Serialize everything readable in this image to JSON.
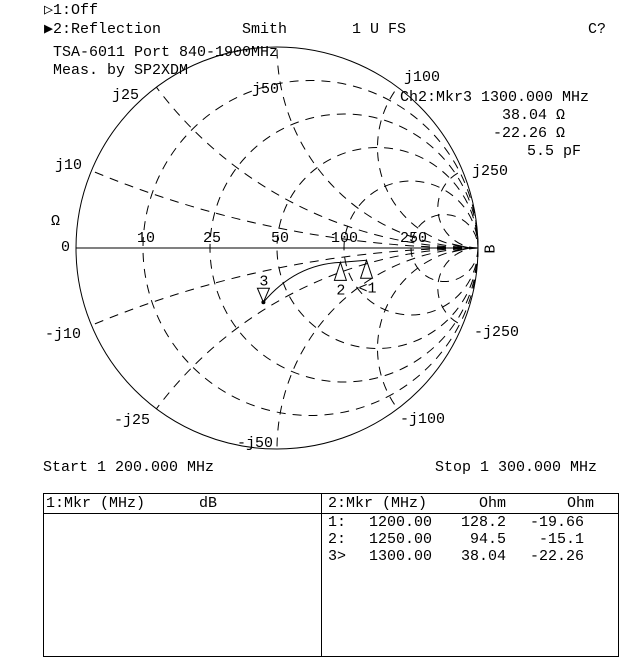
{
  "header": {
    "ch1": "1:Off",
    "ch2": "2:Reflection",
    "format": "Smith",
    "scale": "1 U FS",
    "cal_status": "C?",
    "title_line1": "TSA-6011 Port 840-1900MHz",
    "title_line2": "Meas. by SP2XDM"
  },
  "marker_readout": {
    "title": "Ch2:Mkr3 1300.000 MHz",
    "resistance": "38.04 Ω",
    "reactance": "-22.26 Ω",
    "equivalent": "5.5 pF"
  },
  "chart_data": {
    "type": "smith",
    "z0_ohm": 50,
    "resistance_labels": [
      "0",
      "10",
      "25",
      "50",
      "100",
      "250"
    ],
    "resistance_values": [
      10,
      25,
      50,
      100,
      250
    ],
    "reactance_labels_pos": [
      "j10",
      "j25",
      "j50",
      "j100",
      "j250"
    ],
    "reactance_labels_neg": [
      "-j10",
      "-j25",
      "-j50",
      "-j100",
      "-j250"
    ],
    "reactance_values": [
      10,
      25,
      50,
      100,
      250
    ],
    "unit_label": "Ω",
    "right_label": "B",
    "markers": [
      {
        "label": "1",
        "freq_mhz": 1200.0,
        "r_ohm": 128.2,
        "x_ohm": -19.66
      },
      {
        "label": "2",
        "freq_mhz": 1250.0,
        "r_ohm": 94.5,
        "x_ohm": -15.1
      },
      {
        "label": "3",
        "freq_mhz": 1300.0,
        "r_ohm": 38.04,
        "x_ohm": -22.26
      }
    ]
  },
  "footer": {
    "start": "Start 1 200.000 MHz",
    "stop": "Stop 1 300.000 MHz"
  },
  "table": {
    "left_header": "1:Mkr (MHz)      dB",
    "right_header": {
      "col1": "2:Mkr (MHz)",
      "col2": "Ohm",
      "col3": "Ohm"
    },
    "rows": [
      {
        "id": "1:",
        "freq": "1200.00",
        "r": "128.2",
        "x": "-19.66"
      },
      {
        "id": "2:",
        "freq": "1250.00",
        "r": "94.5",
        "x": "-15.1"
      },
      {
        "id": "3>",
        "freq": "1300.00",
        "r": "38.04",
        "x": "-22.26"
      }
    ]
  }
}
